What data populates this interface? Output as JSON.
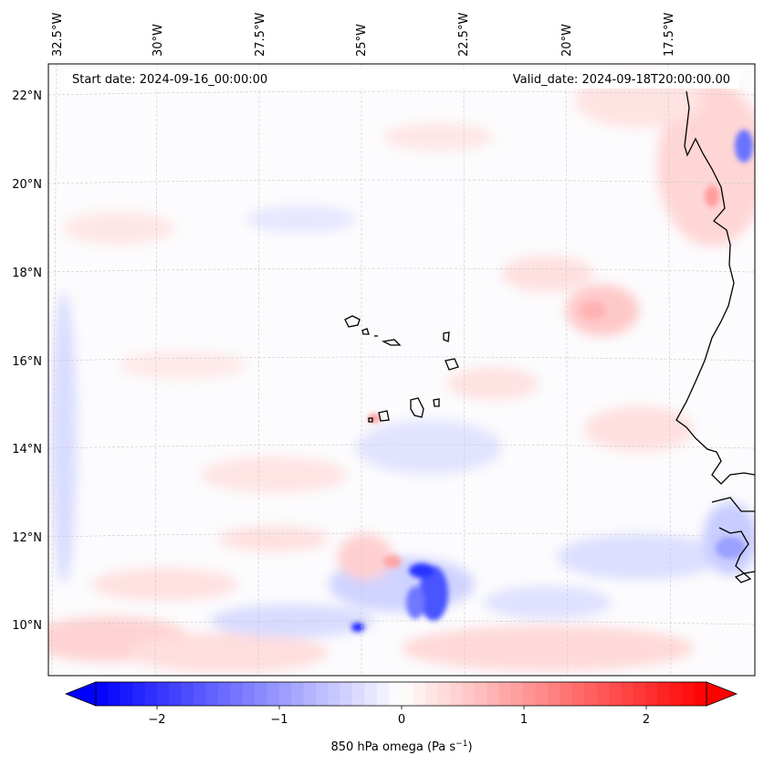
{
  "map": {
    "start_label": "Start date: 2024-09-16_00:00:00",
    "valid_label": "Valid_date: 2024-09-18T20:00:00.00",
    "lon_labels": [
      "32.5°W",
      "30°W",
      "27.5°W",
      "25°W",
      "22.5°W",
      "20°W",
      "17.5°W"
    ],
    "lat_labels": [
      "22°N",
      "20°N",
      "18°N",
      "16°N",
      "14°N",
      "12°N",
      "10°N"
    ],
    "colorbar": {
      "ticks": [
        "−2",
        "−1",
        "0",
        "1",
        "2"
      ],
      "label": "850 hPa omega (Pa s",
      "label_sup": "−1",
      "label_end": ")",
      "range": [
        -2.7,
        2.7
      ],
      "low_color": "#0000ff",
      "high_color": "#ff0000",
      "mid_color": "#ffffff"
    },
    "colors": {
      "coast": "#000000",
      "grid": "#c8c8c8"
    }
  }
}
